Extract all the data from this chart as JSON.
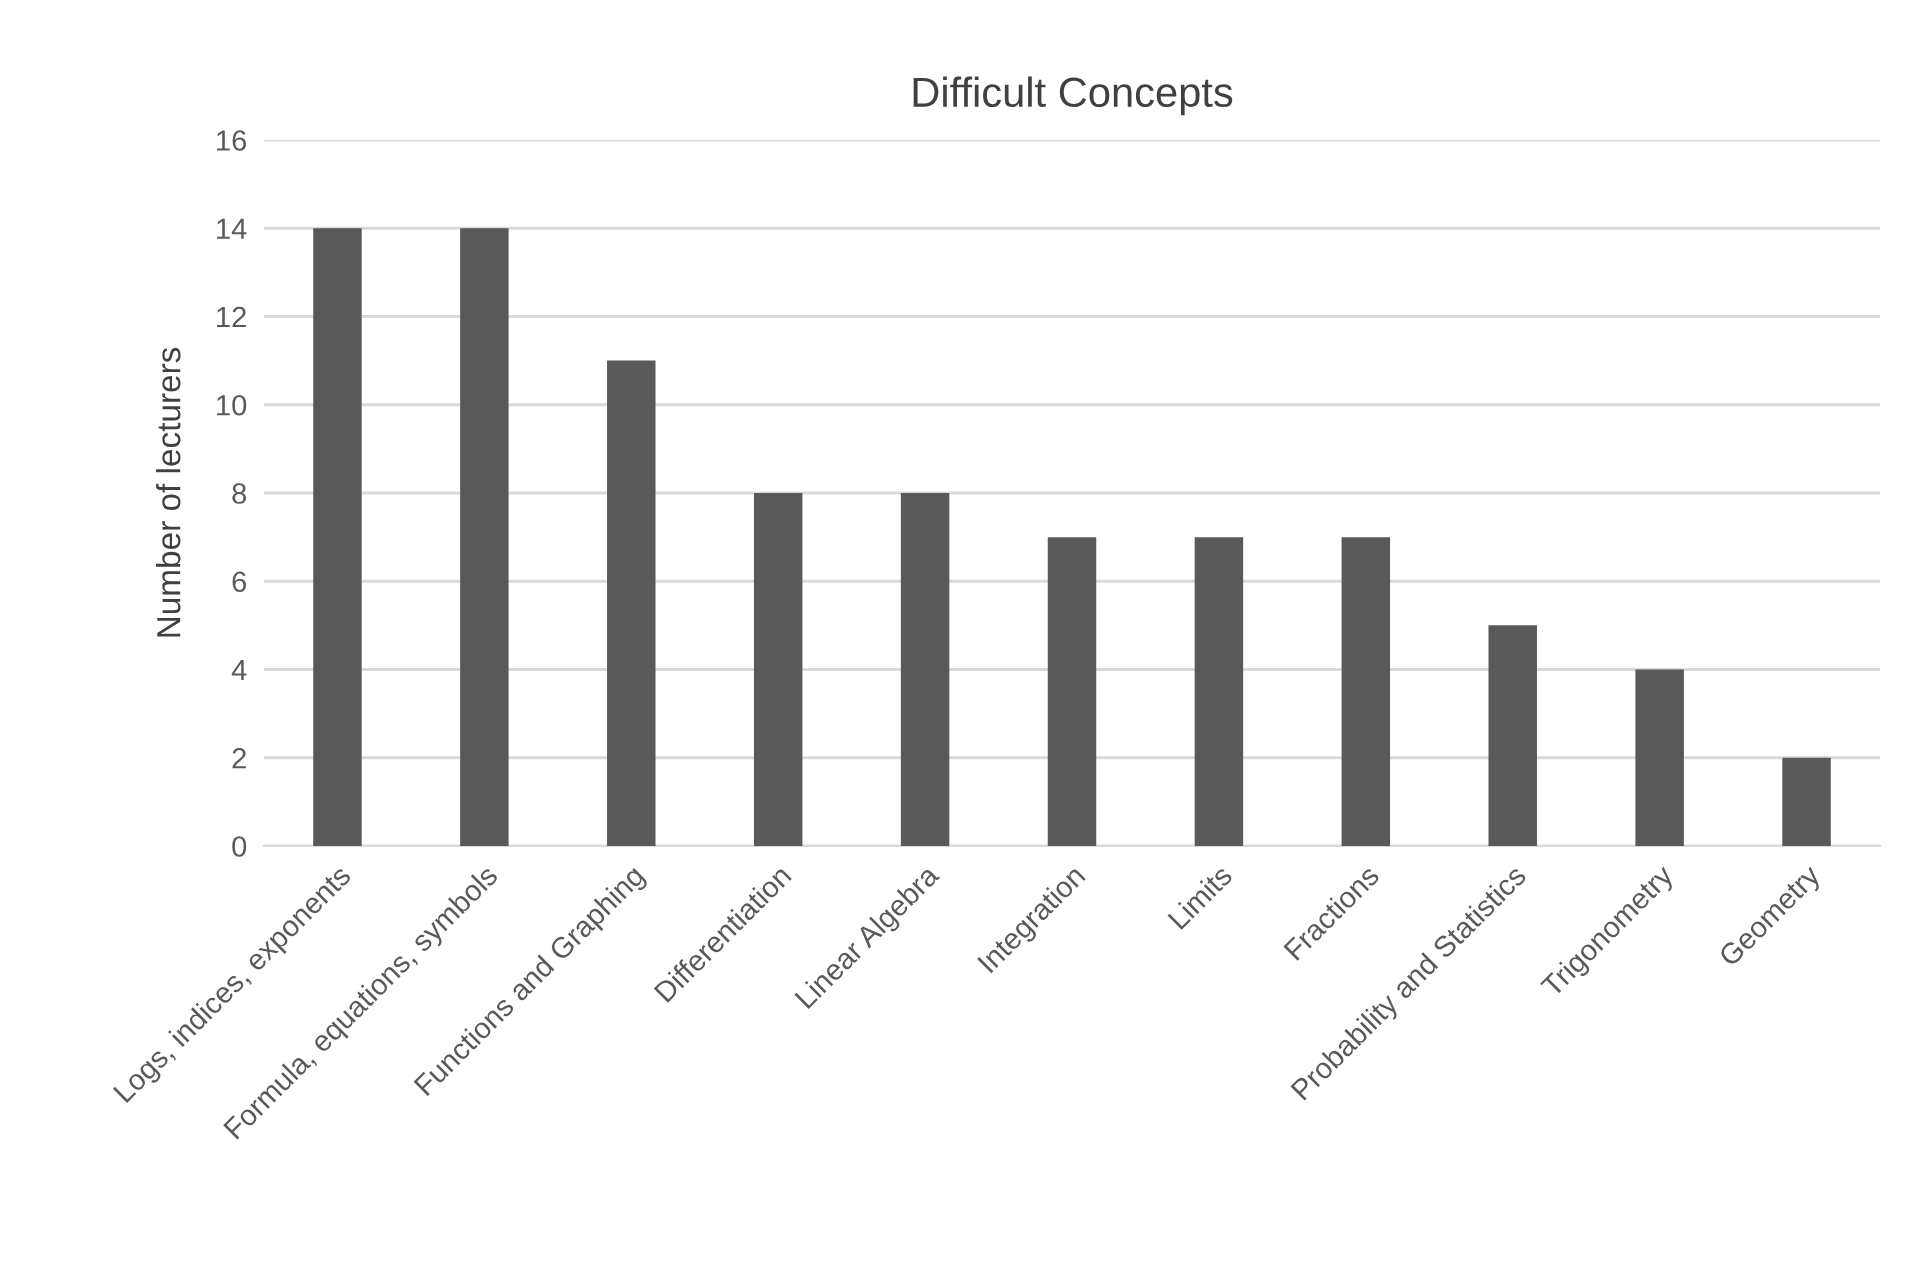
{
  "chart_data": {
    "type": "bar",
    "title": "Difficult Concepts",
    "ylabel": "Number of lecturers",
    "categories": [
      "Logs, indices, exponents",
      "Formula, equations, symbols",
      "Functions and Graphing",
      "Differentiation",
      "Linear Algebra",
      "Integration",
      "Limits",
      "Fractions",
      "Probability and Statistics",
      "Trigonometry",
      "Geometry"
    ],
    "values": [
      14,
      14,
      11,
      8,
      8,
      7,
      7,
      7,
      5,
      4,
      2
    ],
    "color": "#595959",
    "ylim": [
      0,
      16
    ],
    "yticks": [
      0,
      2,
      4,
      6,
      8,
      10,
      12,
      14,
      16
    ],
    "grid": "y"
  }
}
